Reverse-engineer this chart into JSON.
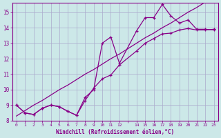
{
  "xlabel": "Windchill (Refroidissement éolien,°C)",
  "bg_color": "#cce8e8",
  "line_color": "#880088",
  "grid_color": "#aaaacc",
  "x_windchill": [
    0,
    1,
    2,
    3,
    4,
    5,
    6,
    7,
    8,
    9,
    10,
    11,
    12,
    14,
    15,
    16,
    17,
    18,
    19,
    20,
    21,
    22,
    23
  ],
  "y_temp1": [
    9.0,
    8.5,
    8.4,
    8.8,
    9.0,
    8.9,
    8.6,
    8.35,
    9.5,
    10.0,
    13.0,
    13.4,
    11.7,
    13.8,
    14.65,
    14.65,
    15.5,
    14.75,
    14.3,
    14.5,
    13.9,
    13.9,
    13.85
  ],
  "y_temp2": [
    9.0,
    8.5,
    8.4,
    8.8,
    9.0,
    8.9,
    8.6,
    8.35,
    9.3,
    10.1,
    10.7,
    10.95,
    11.6,
    12.5,
    13.0,
    13.3,
    13.6,
    13.65,
    13.85,
    13.95,
    13.85,
    13.85,
    13.9
  ],
  "y_line": [
    8.3,
    8.65,
    9.0,
    9.3,
    9.65,
    10.0,
    10.3,
    10.65,
    11.0,
    11.3,
    11.65,
    12.0,
    12.3,
    13.0,
    13.35,
    13.65,
    14.0,
    14.3,
    14.65,
    15.0,
    15.3,
    15.65,
    16.0
  ],
  "xlim": [
    -0.5,
    23.5
  ],
  "ylim": [
    8.0,
    15.6
  ],
  "yticks": [
    8,
    9,
    10,
    11,
    12,
    13,
    14,
    15
  ],
  "xticks": [
    0,
    1,
    2,
    3,
    4,
    5,
    6,
    7,
    8,
    9,
    10,
    11,
    12,
    13,
    14,
    15,
    16,
    17,
    18,
    19,
    20,
    21,
    22,
    23
  ],
  "xtick_labels": [
    "0",
    "1",
    "2",
    "3",
    "4",
    "5",
    "6",
    "7",
    "8",
    "9",
    "10",
    "11",
    "12",
    "",
    "14",
    "15",
    "16",
    "17",
    "18",
    "19",
    "20",
    "21",
    "22",
    "23"
  ]
}
